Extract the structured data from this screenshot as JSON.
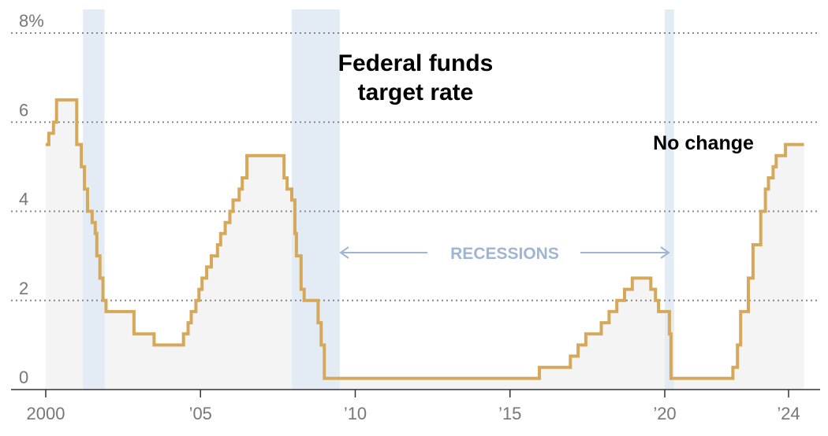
{
  "colors": {
    "line": "#d6a85a",
    "area": "#f4f4f4",
    "recession": "#e3ebf4",
    "grid": "#888888",
    "axis": "#333333",
    "recession_label": "#9fb5d3"
  },
  "chart_data": {
    "type": "line",
    "title": "Federal funds target rate",
    "title_lines": [
      "Federal funds",
      "target rate"
    ],
    "y_unit_suffix": "%",
    "xlim": [
      2000,
      2024.5
    ],
    "ylim": [
      0,
      8
    ],
    "y_ticks": [
      {
        "value": 8,
        "label": "8%"
      },
      {
        "value": 6,
        "label": "6"
      },
      {
        "value": 4,
        "label": "4"
      },
      {
        "value": 2,
        "label": "2"
      },
      {
        "value": 0,
        "label": "0"
      }
    ],
    "x_ticks": [
      {
        "value": 2000,
        "label": "2000"
      },
      {
        "value": 2005,
        "label": "’05"
      },
      {
        "value": 2010,
        "label": "’10"
      },
      {
        "value": 2015,
        "label": "’15"
      },
      {
        "value": 2020,
        "label": "’20"
      },
      {
        "value": 2024,
        "label": "’24"
      }
    ],
    "grid": "horizontal dotted",
    "recessions": [
      {
        "start": 2001.2,
        "end": 2001.9
      },
      {
        "start": 2007.95,
        "end": 2009.5
      },
      {
        "start": 2020.0,
        "end": 2020.3
      }
    ],
    "recessions_label": "RECESSIONS",
    "annotations": [
      {
        "text": "No change",
        "x": 2022.7,
        "y": 5.45
      }
    ],
    "series": [
      {
        "step": true,
        "points": [
          [
            2000.0,
            5.5
          ],
          [
            2000.1,
            5.75
          ],
          [
            2000.25,
            6.0
          ],
          [
            2000.35,
            6.5
          ],
          [
            2001.0,
            5.5
          ],
          [
            2001.15,
            5.0
          ],
          [
            2001.25,
            4.5
          ],
          [
            2001.35,
            4.0
          ],
          [
            2001.5,
            3.75
          ],
          [
            2001.6,
            3.5
          ],
          [
            2001.65,
            3.0
          ],
          [
            2001.75,
            2.5
          ],
          [
            2001.85,
            2.0
          ],
          [
            2001.95,
            1.75
          ],
          [
            2002.85,
            1.25
          ],
          [
            2003.5,
            1.0
          ],
          [
            2004.45,
            1.25
          ],
          [
            2004.6,
            1.5
          ],
          [
            2004.7,
            1.75
          ],
          [
            2004.85,
            2.0
          ],
          [
            2004.95,
            2.25
          ],
          [
            2005.05,
            2.5
          ],
          [
            2005.2,
            2.75
          ],
          [
            2005.35,
            3.0
          ],
          [
            2005.55,
            3.25
          ],
          [
            2005.65,
            3.5
          ],
          [
            2005.8,
            3.75
          ],
          [
            2005.95,
            4.0
          ],
          [
            2006.05,
            4.25
          ],
          [
            2006.25,
            4.5
          ],
          [
            2006.35,
            4.75
          ],
          [
            2006.5,
            5.25
          ],
          [
            2007.7,
            4.75
          ],
          [
            2007.8,
            4.5
          ],
          [
            2007.95,
            4.25
          ],
          [
            2008.05,
            3.5
          ],
          [
            2008.1,
            3.0
          ],
          [
            2008.25,
            2.25
          ],
          [
            2008.35,
            2.0
          ],
          [
            2008.8,
            1.5
          ],
          [
            2008.9,
            1.0
          ],
          [
            2009.0,
            0.25
          ],
          [
            2015.95,
            0.5
          ],
          [
            2016.95,
            0.75
          ],
          [
            2017.2,
            1.0
          ],
          [
            2017.45,
            1.25
          ],
          [
            2017.95,
            1.5
          ],
          [
            2018.2,
            1.75
          ],
          [
            2018.45,
            2.0
          ],
          [
            2018.7,
            2.25
          ],
          [
            2018.95,
            2.5
          ],
          [
            2019.55,
            2.25
          ],
          [
            2019.7,
            2.0
          ],
          [
            2019.8,
            1.75
          ],
          [
            2020.15,
            1.25
          ],
          [
            2020.2,
            0.25
          ],
          [
            2022.2,
            0.5
          ],
          [
            2022.35,
            1.0
          ],
          [
            2022.45,
            1.75
          ],
          [
            2022.7,
            2.5
          ],
          [
            2022.85,
            3.25
          ],
          [
            2023.1,
            4.0
          ],
          [
            2023.25,
            4.5
          ],
          [
            2023.35,
            4.75
          ],
          [
            2023.5,
            5.0
          ],
          [
            2023.6,
            5.25
          ],
          [
            2023.9,
            5.5
          ],
          [
            2024.5,
            5.5
          ]
        ]
      }
    ]
  }
}
